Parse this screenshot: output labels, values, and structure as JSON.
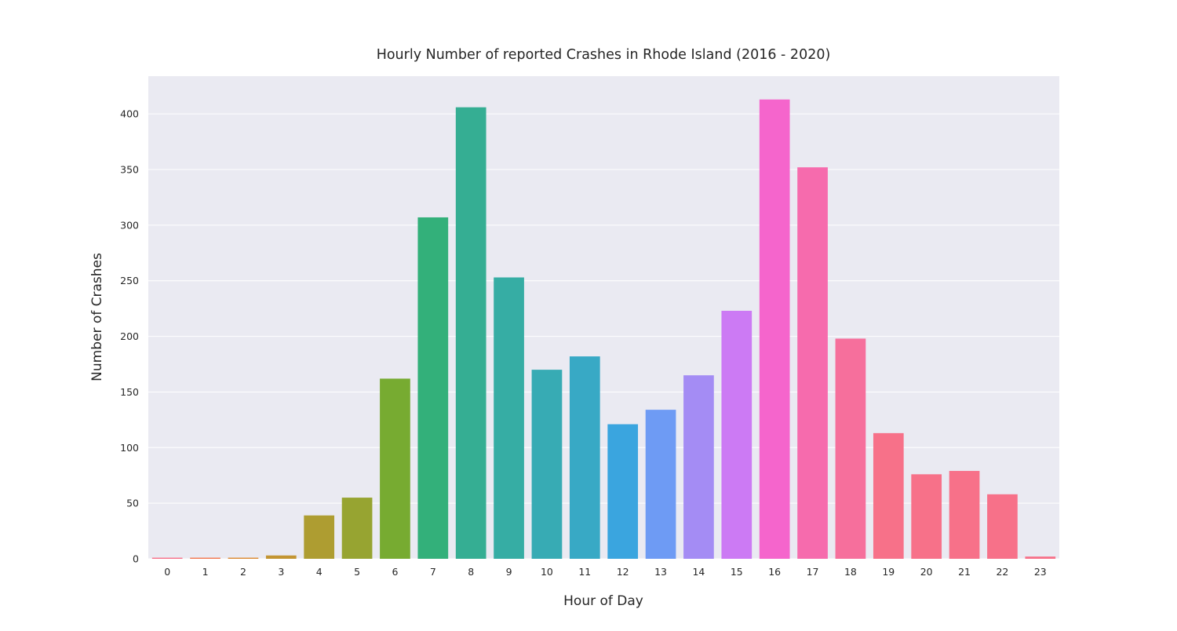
{
  "chart_data": {
    "type": "bar",
    "title": "Hourly Number of reported Crashes in Rhode Island (2016 - 2020)",
    "xlabel": "Hour of Day",
    "ylabel": "Number of Crashes",
    "categories": [
      "0",
      "1",
      "2",
      "3",
      "4",
      "5",
      "6",
      "7",
      "8",
      "9",
      "10",
      "11",
      "12",
      "13",
      "14",
      "15",
      "16",
      "17",
      "18",
      "19",
      "20",
      "21",
      "22",
      "23"
    ],
    "values": [
      1,
      1,
      1,
      3,
      39,
      55,
      162,
      307,
      406,
      253,
      170,
      182,
      121,
      134,
      165,
      223,
      413,
      352,
      198,
      113,
      76,
      79,
      58,
      2
    ],
    "yticks": [
      0,
      50,
      100,
      150,
      200,
      250,
      300,
      350,
      400
    ],
    "ylim": [
      0,
      434
    ],
    "grid": true,
    "background_color": "#eaeaf2",
    "grid_color": "#ffffff",
    "bar_colors": [
      "#f77189",
      "#f3784f",
      "#dc8932",
      "#c39532",
      "#ae9d31",
      "#97a431",
      "#77ab31",
      "#33b07a",
      "#35ae93",
      "#36ada4",
      "#37abb4",
      "#38a9c5",
      "#3aa5df",
      "#6e9bf4",
      "#a48cf4",
      "#cc7af4",
      "#f565cc",
      "#f66bad",
      "#f66f9c",
      "#f77189",
      "#f77189",
      "#f77189",
      "#f77189",
      "#f77189"
    ]
  }
}
